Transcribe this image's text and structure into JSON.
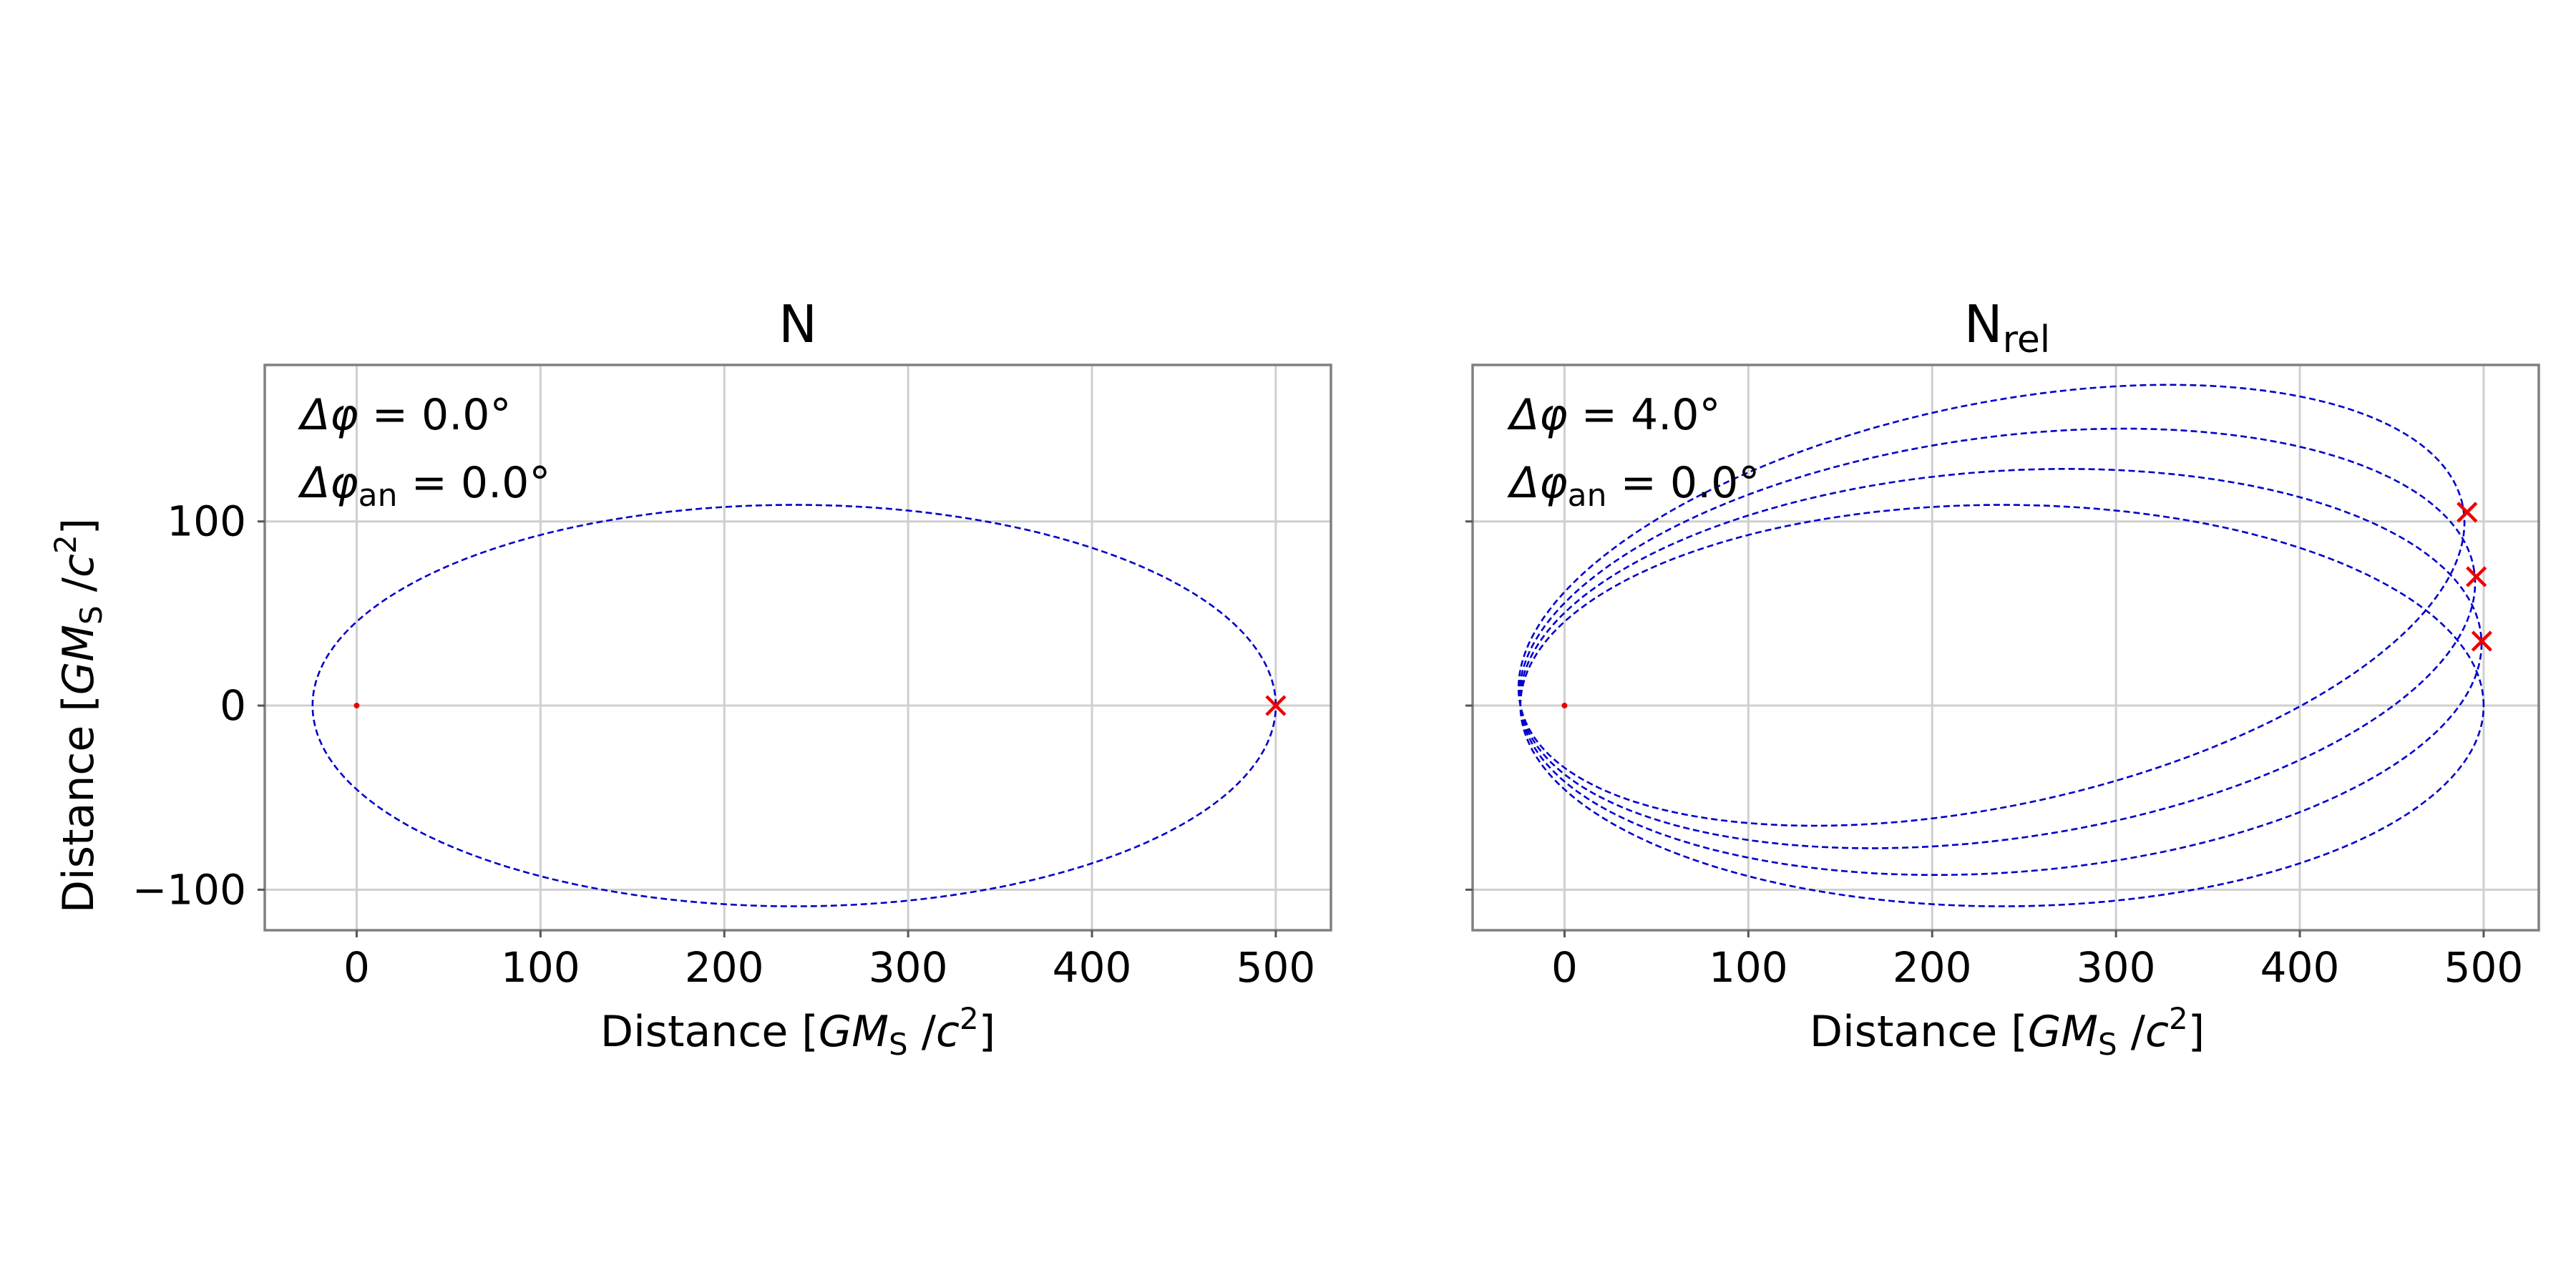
{
  "colors": {
    "orbit": "#0000cc",
    "marker": "#ee0000",
    "grid": "#cfcfcf",
    "frame": "#808080"
  },
  "chart_data": [
    {
      "type": "line",
      "title": "N",
      "title_sub": "",
      "xlabel": "Distance [GM_S/c^2]",
      "ylabel": "Distance [GM_S/c^2]",
      "xlim": [
        -50,
        530
      ],
      "ylim": [
        -122,
        185
      ],
      "xticks": [
        0,
        100,
        200,
        300,
        400,
        500
      ],
      "yticks": [
        -100,
        0,
        100
      ],
      "grid": true,
      "annotations": {
        "dphi": {
          "symbol": "Δφ",
          "sub": "",
          "value": "= 0.0°"
        },
        "dphi_an": {
          "symbol": "Δφ",
          "sub": "an",
          "value": "= 0.0°"
        }
      },
      "orbit": {
        "semi_major": 262,
        "semi_minor": 109,
        "periapsis_x": -24,
        "precession_deg": 0,
        "revolutions": 1
      },
      "central_mass": {
        "x": 0,
        "y": 0
      },
      "apoapsis_markers": [
        {
          "x": 500,
          "y": 0
        }
      ]
    },
    {
      "type": "line",
      "title": "N",
      "title_sub": "rel",
      "xlabel": "Distance [GM_S/c^2]",
      "ylabel": "",
      "xlim": [
        -50,
        530
      ],
      "ylim": [
        -122,
        185
      ],
      "xticks": [
        0,
        100,
        200,
        300,
        400,
        500
      ],
      "yticks": [
        -100,
        0,
        100
      ],
      "grid": true,
      "annotations": {
        "dphi": {
          "symbol": "Δφ",
          "sub": "",
          "value": "= 4.0°"
        },
        "dphi_an": {
          "symbol": "Δφ",
          "sub": "an",
          "value": "= 0.0°"
        }
      },
      "orbit": {
        "semi_major": 262,
        "semi_minor": 109,
        "periapsis_x": -24,
        "precession_deg": 4.0,
        "revolutions": 4
      },
      "central_mass": {
        "x": 0,
        "y": 0
      },
      "apoapsis_markers": [
        {
          "x": 499,
          "y": 35
        },
        {
          "x": 496,
          "y": 70
        },
        {
          "x": 491,
          "y": 105
        }
      ]
    }
  ]
}
